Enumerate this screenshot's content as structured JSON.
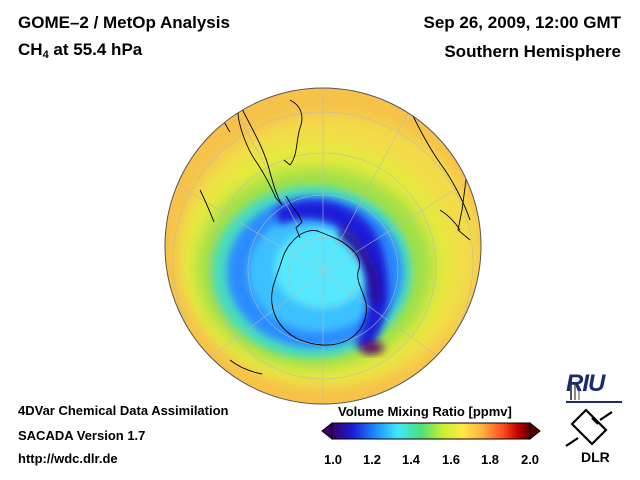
{
  "header": {
    "title_line1": "GOME–2 / MetOp Analysis",
    "species": "CH",
    "species_sub": "4",
    "level": " at 55.4 hPa",
    "datetime": "Sep 26, 2009, 12:00 GMT",
    "region": "Southern Hemisphere"
  },
  "footer": {
    "method": "4DVar Chemical Data Assimilation",
    "version": "SACADA Version 1.7",
    "url": "http://wdc.dlr.de"
  },
  "colorbar": {
    "title": "Volume Mixing Ratio [ppmv]",
    "ticks": [
      "1.0",
      "1.2",
      "1.4",
      "1.6",
      "1.8",
      "2.0"
    ],
    "colors": [
      "#3a0066",
      "#1a1ad0",
      "#1e8cff",
      "#3fe8ff",
      "#4ce07a",
      "#c8f030",
      "#ffe84a",
      "#ffb040",
      "#ff5020",
      "#c00000",
      "#5a0000"
    ]
  },
  "logos": {
    "riu": "RIU",
    "dlr": "DLR"
  },
  "map": {
    "projection": "orthographic",
    "center": "South Pole",
    "min_region": "southern polar vortex"
  }
}
